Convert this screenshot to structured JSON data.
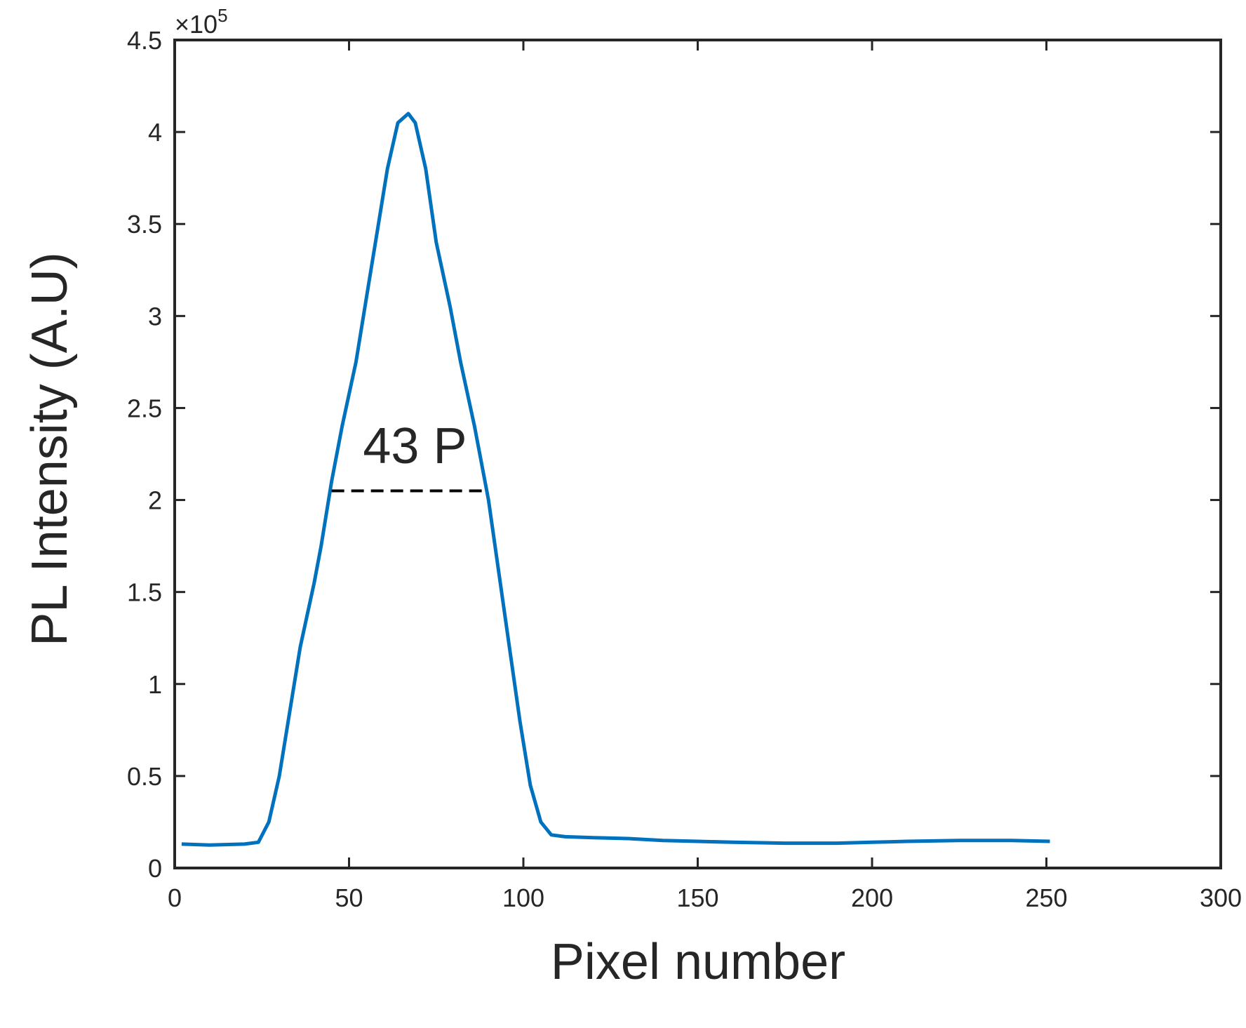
{
  "chart_data": {
    "type": "line",
    "xlabel": "Pixel number",
    "ylabel": "PL Intensity (A.U)",
    "y_multiplier": "×10",
    "y_multiplier_exp": "5",
    "xlim": [
      0,
      300
    ],
    "xticks": [
      0,
      50,
      100,
      150,
      200,
      250,
      300
    ],
    "ylim": [
      0,
      4.5
    ],
    "yticks": [
      0,
      0.5,
      1,
      1.5,
      2,
      2.5,
      3,
      3.5,
      4,
      4.5
    ],
    "grid": false,
    "series": [
      {
        "color": "#0072bd",
        "x": [
          2,
          10,
          20,
          24,
          27,
          30,
          33,
          36,
          40,
          42,
          45,
          48,
          52,
          55,
          58,
          61,
          64,
          67,
          69,
          72,
          75,
          79,
          82,
          86,
          90,
          93,
          96,
          99,
          102,
          105,
          108,
          112,
          120,
          130,
          140,
          150,
          160,
          175,
          190,
          200,
          210,
          225,
          240,
          251
        ],
        "values": [
          0.13,
          0.125,
          0.13,
          0.14,
          0.25,
          0.5,
          0.85,
          1.2,
          1.55,
          1.75,
          2.1,
          2.4,
          2.75,
          3.1,
          3.45,
          3.8,
          4.05,
          4.1,
          4.05,
          3.8,
          3.4,
          3.05,
          2.75,
          2.4,
          2.0,
          1.6,
          1.2,
          0.8,
          0.45,
          0.25,
          0.18,
          0.17,
          0.165,
          0.16,
          0.15,
          0.145,
          0.14,
          0.135,
          0.135,
          0.14,
          0.145,
          0.15,
          0.15,
          0.145
        ]
      }
    ],
    "annotation": {
      "text": "43 P",
      "x": 54,
      "y": 2.2
    },
    "fwhm_line": {
      "x": [
        45,
        89
      ],
      "y": 2.05
    }
  }
}
